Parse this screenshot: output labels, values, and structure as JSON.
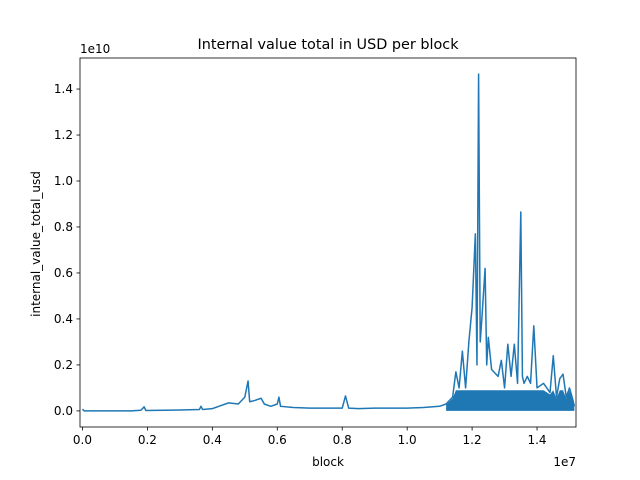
{
  "chart_data": {
    "type": "line",
    "title": "Internal value total in USD per block",
    "xlabel": "block",
    "ylabel": "internal_value_total_usd",
    "x_offset_label": "1e7",
    "y_offset_label": "1e10",
    "xlim": [
      -0.076,
      15.2
    ],
    "ylim": [
      -0.07,
      1.535
    ],
    "x_ticks": [
      0.0,
      0.2,
      0.4,
      0.6,
      0.8,
      1.0,
      1.2,
      1.4
    ],
    "x_tick_labels": [
      "0.0",
      "0.2",
      "0.4",
      "0.6",
      "0.8",
      "1.0",
      "1.2",
      "1.4"
    ],
    "y_ticks": [
      0.0,
      0.2,
      0.4,
      0.6,
      0.8,
      1.0,
      1.2,
      1.4
    ],
    "y_tick_labels": [
      "0.0",
      "0.2",
      "0.4",
      "0.6",
      "0.8",
      "1.0",
      "1.2",
      "1.4"
    ],
    "grid": false,
    "color": "#1f77b4",
    "series": [
      {
        "name": "",
        "x_units": "block (millions)",
        "y_units": "USD (x1e10)",
        "points": [
          [
            0.0,
            0.008
          ],
          [
            0.05,
            0.0
          ],
          [
            0.3,
            0.0
          ],
          [
            1.0,
            0.0
          ],
          [
            1.5,
            0.0
          ],
          [
            1.8,
            0.003
          ],
          [
            1.9,
            0.018
          ],
          [
            1.95,
            0.002
          ],
          [
            2.5,
            0.003
          ],
          [
            3.0,
            0.004
          ],
          [
            3.6,
            0.006
          ],
          [
            3.65,
            0.02
          ],
          [
            3.7,
            0.006
          ],
          [
            4.0,
            0.01
          ],
          [
            4.2,
            0.02
          ],
          [
            4.5,
            0.035
          ],
          [
            4.8,
            0.03
          ],
          [
            5.0,
            0.06
          ],
          [
            5.1,
            0.13
          ],
          [
            5.15,
            0.04
          ],
          [
            5.3,
            0.045
          ],
          [
            5.5,
            0.055
          ],
          [
            5.6,
            0.03
          ],
          [
            5.8,
            0.02
          ],
          [
            6.0,
            0.03
          ],
          [
            6.05,
            0.06
          ],
          [
            6.1,
            0.02
          ],
          [
            6.5,
            0.015
          ],
          [
            7.0,
            0.012
          ],
          [
            7.5,
            0.012
          ],
          [
            8.0,
            0.012
          ],
          [
            8.1,
            0.065
          ],
          [
            8.2,
            0.012
          ],
          [
            8.5,
            0.01
          ],
          [
            9.0,
            0.012
          ],
          [
            9.5,
            0.012
          ],
          [
            10.0,
            0.012
          ],
          [
            10.5,
            0.015
          ],
          [
            11.0,
            0.02
          ],
          [
            11.2,
            0.03
          ],
          [
            11.4,
            0.06
          ],
          [
            11.5,
            0.17
          ],
          [
            11.6,
            0.1
          ],
          [
            11.7,
            0.26
          ],
          [
            11.8,
            0.1
          ],
          [
            11.9,
            0.3
          ],
          [
            12.0,
            0.45
          ],
          [
            12.1,
            0.77
          ],
          [
            12.15,
            0.2
          ],
          [
            12.2,
            1.465
          ],
          [
            12.25,
            0.3
          ],
          [
            12.3,
            0.4
          ],
          [
            12.4,
            0.62
          ],
          [
            12.45,
            0.2
          ],
          [
            12.5,
            0.32
          ],
          [
            12.6,
            0.18
          ],
          [
            12.8,
            0.15
          ],
          [
            12.9,
            0.22
          ],
          [
            13.0,
            0.1
          ],
          [
            13.1,
            0.29
          ],
          [
            13.2,
            0.15
          ],
          [
            13.3,
            0.29
          ],
          [
            13.4,
            0.12
          ],
          [
            13.5,
            0.865
          ],
          [
            13.55,
            0.15
          ],
          [
            13.6,
            0.12
          ],
          [
            13.7,
            0.15
          ],
          [
            13.8,
            0.12
          ],
          [
            13.9,
            0.37
          ],
          [
            14.0,
            0.1
          ],
          [
            14.2,
            0.12
          ],
          [
            14.4,
            0.08
          ],
          [
            14.5,
            0.24
          ],
          [
            14.6,
            0.06
          ],
          [
            14.7,
            0.14
          ],
          [
            14.8,
            0.16
          ],
          [
            14.9,
            0.06
          ],
          [
            15.0,
            0.1
          ],
          [
            15.1,
            0.05
          ],
          [
            15.15,
            0.02
          ]
        ]
      }
    ]
  }
}
